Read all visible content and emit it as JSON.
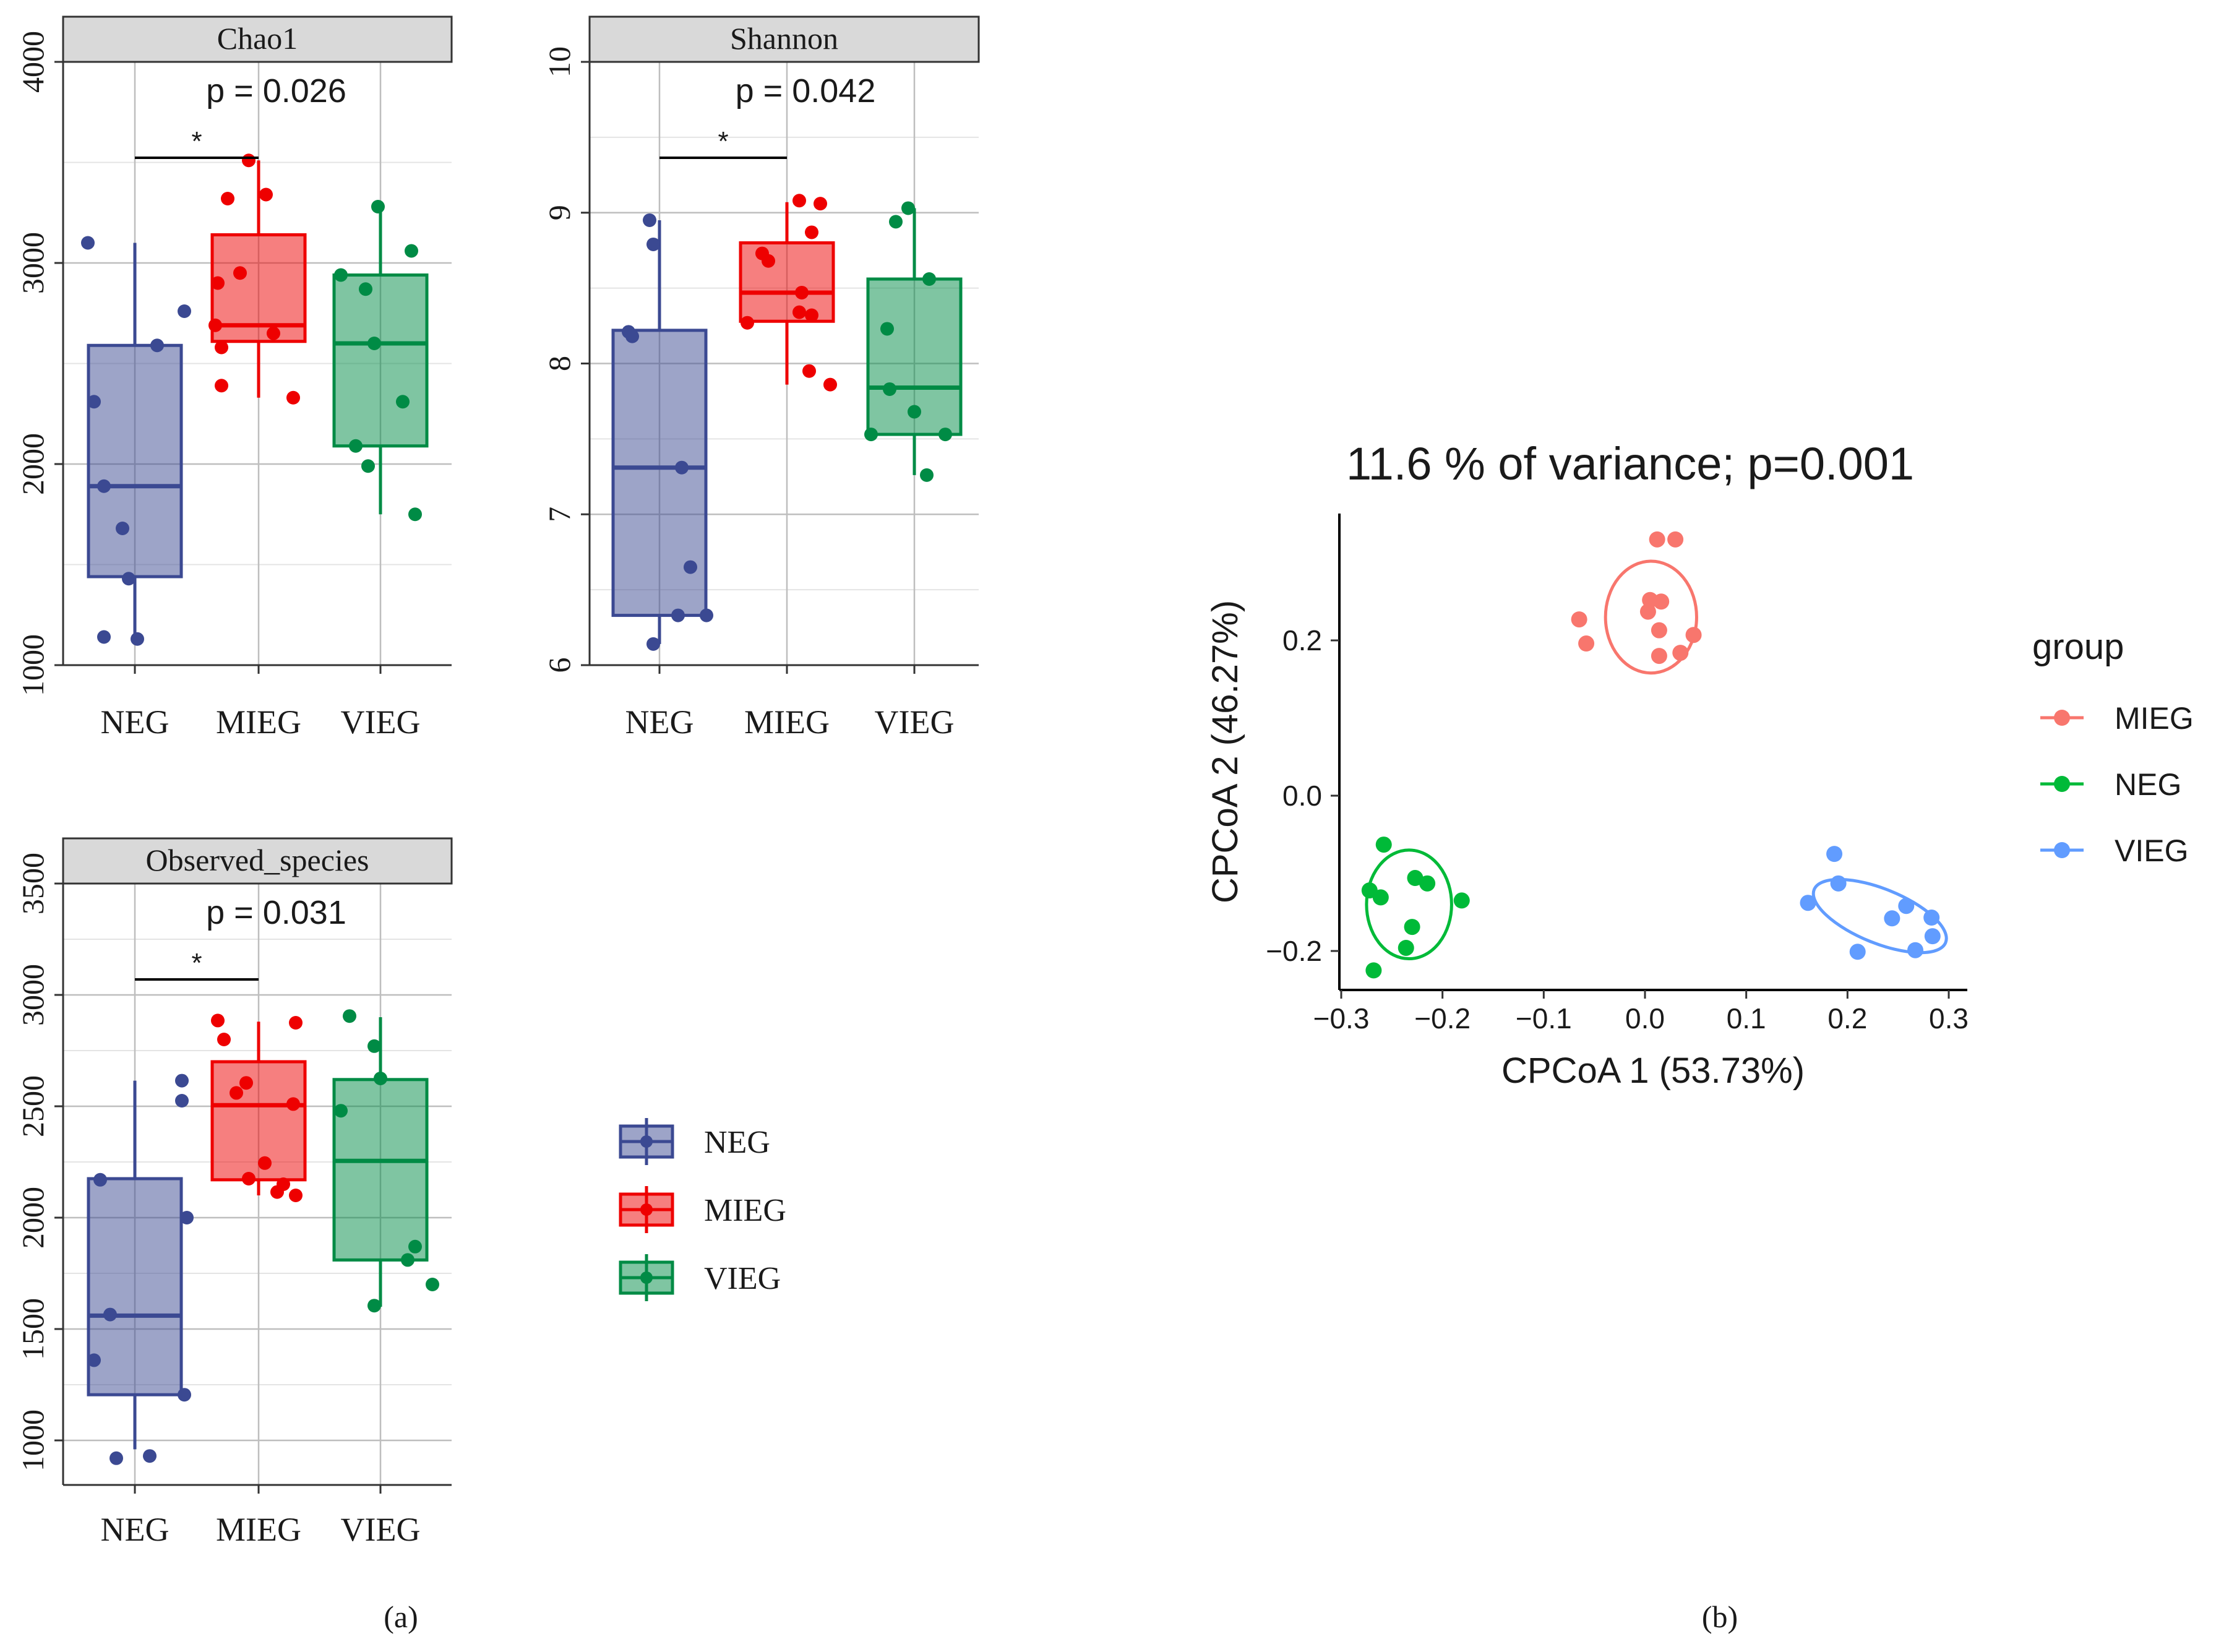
{
  "colors": {
    "NEG": "#3B4992",
    "MIEG": "#EE0000",
    "VIEG": "#008B45",
    "pcoa_MIEG": "#F8766D",
    "pcoa_NEG": "#00BA38",
    "pcoa_VIEG": "#619CFF",
    "strip": "#D9D9D9",
    "grid": "#BEBEBE"
  },
  "panel_labels": {
    "a": "(a)",
    "b": "(b)"
  },
  "chart_data": [
    {
      "type": "box",
      "title": "Chao1",
      "categories": [
        "NEG",
        "MIEG",
        "VIEG"
      ],
      "yticks": [
        "1000",
        "2000",
        "3000",
        "4000"
      ],
      "ylim": [
        1000,
        4000
      ],
      "annotation": "p = 0.026",
      "significance": "*",
      "series": [
        {
          "name": "NEG",
          "q1": 1440,
          "median": 1890,
          "q3": 2590,
          "whisker_low": 1130,
          "whisker_high": 3100,
          "points": [
            [
              -0.38,
              3100
            ],
            [
              0.4,
              2760
            ],
            [
              0.18,
              2590
            ],
            [
              -0.33,
              2310
            ],
            [
              -0.25,
              1890
            ],
            [
              -0.1,
              1680
            ],
            [
              -0.05,
              1430
            ],
            [
              -0.25,
              1140
            ],
            [
              0.02,
              1130
            ]
          ]
        },
        {
          "name": "MIEG",
          "q1": 2610,
          "median": 2690,
          "q3": 3140,
          "whisker_low": 2330,
          "whisker_high": 3510,
          "points": [
            [
              -0.08,
              3510
            ],
            [
              0.06,
              3340
            ],
            [
              -0.25,
              3320
            ],
            [
              -0.15,
              2950
            ],
            [
              -0.33,
              2900
            ],
            [
              -0.35,
              2690
            ],
            [
              0.12,
              2650
            ],
            [
              -0.3,
              2580
            ],
            [
              -0.3,
              2390
            ],
            [
              0.28,
              2330
            ]
          ]
        },
        {
          "name": "VIEG",
          "q1": 2090,
          "median": 2600,
          "q3": 2940,
          "whisker_low": 1750,
          "whisker_high": 3280,
          "points": [
            [
              -0.02,
              3280
            ],
            [
              0.25,
              3060
            ],
            [
              -0.32,
              2940
            ],
            [
              -0.12,
              2870
            ],
            [
              -0.05,
              2600
            ],
            [
              0.18,
              2310
            ],
            [
              -0.2,
              2090
            ],
            [
              -0.1,
              1990
            ],
            [
              0.28,
              1750
            ]
          ]
        }
      ]
    },
    {
      "type": "box",
      "title": "Shannon",
      "categories": [
        "NEG",
        "MIEG",
        "VIEG"
      ],
      "yticks": [
        "6",
        "7",
        "8",
        "9",
        "10"
      ],
      "ylim": [
        6,
        10
      ],
      "annotation": "p = 0.042",
      "significance": "*",
      "series": [
        {
          "name": "NEG",
          "q1": 6.33,
          "median": 7.31,
          "q3": 8.22,
          "whisker_low": 6.14,
          "whisker_high": 8.95,
          "points": [
            [
              -0.08,
              8.95
            ],
            [
              -0.05,
              8.79
            ],
            [
              -0.25,
              8.21
            ],
            [
              -0.22,
              8.18
            ],
            [
              0.18,
              7.31
            ],
            [
              0.25,
              6.65
            ],
            [
              0.15,
              6.33
            ],
            [
              0.38,
              6.33
            ],
            [
              -0.05,
              6.14
            ]
          ]
        },
        {
          "name": "MIEG",
          "q1": 8.28,
          "median": 8.47,
          "q3": 8.8,
          "whisker_low": 7.86,
          "whisker_high": 9.07,
          "points": [
            [
              0.1,
              9.08
            ],
            [
              0.27,
              9.06
            ],
            [
              0.2,
              8.87
            ],
            [
              -0.2,
              8.73
            ],
            [
              -0.15,
              8.68
            ],
            [
              0.12,
              8.47
            ],
            [
              0.1,
              8.34
            ],
            [
              0.2,
              8.32
            ],
            [
              -0.32,
              8.27
            ],
            [
              0.18,
              7.95
            ],
            [
              0.35,
              7.86
            ]
          ]
        },
        {
          "name": "VIEG",
          "q1": 7.53,
          "median": 7.84,
          "q3": 8.56,
          "whisker_low": 7.26,
          "whisker_high": 9.03,
          "points": [
            [
              -0.15,
              8.94
            ],
            [
              -0.05,
              9.03
            ],
            [
              0.12,
              8.56
            ],
            [
              -0.22,
              8.23
            ],
            [
              -0.2,
              7.83
            ],
            [
              -0.35,
              7.53
            ],
            [
              0.25,
              7.53
            ],
            [
              0.0,
              7.68
            ],
            [
              0.1,
              7.26
            ]
          ]
        }
      ]
    },
    {
      "type": "box",
      "title": "Observed_species",
      "categories": [
        "NEG",
        "MIEG",
        "VIEG"
      ],
      "yticks": [
        "1000",
        "1500",
        "2000",
        "2500",
        "3000",
        "3500"
      ],
      "ylim": [
        800,
        3500
      ],
      "annotation": "p = 0.031",
      "significance": "*",
      "series": [
        {
          "name": "NEG",
          "q1": 1205,
          "median": 1560,
          "q3": 2175,
          "whisker_low": 960,
          "whisker_high": 2615,
          "points": [
            [
              0.38,
              2615
            ],
            [
              0.38,
              2525
            ],
            [
              -0.28,
              2170
            ],
            [
              0.42,
              2000
            ],
            [
              -0.2,
              1565
            ],
            [
              -0.33,
              1360
            ],
            [
              0.4,
              1205
            ],
            [
              -0.15,
              920
            ],
            [
              0.12,
              930
            ]
          ]
        },
        {
          "name": "MIEG",
          "q1": 2170,
          "median": 2505,
          "q3": 2700,
          "whisker_low": 2100,
          "whisker_high": 2880,
          "points": [
            [
              -0.33,
              2885
            ],
            [
              0.3,
              2875
            ],
            [
              -0.28,
              2800
            ],
            [
              -0.1,
              2605
            ],
            [
              -0.18,
              2560
            ],
            [
              0.28,
              2510
            ],
            [
              0.05,
              2245
            ],
            [
              -0.08,
              2175
            ],
            [
              0.2,
              2150
            ],
            [
              0.15,
              2115
            ],
            [
              0.3,
              2100
            ]
          ]
        },
        {
          "name": "VIEG",
          "q1": 1810,
          "median": 2255,
          "q3": 2620,
          "whisker_low": 1600,
          "whisker_high": 2900,
          "points": [
            [
              -0.25,
              2905
            ],
            [
              -0.05,
              2770
            ],
            [
              0.0,
              2625
            ],
            [
              -0.32,
              2480
            ],
            [
              0.28,
              1870
            ],
            [
              0.22,
              1810
            ],
            [
              -0.05,
              1605
            ],
            [
              0.42,
              1700
            ]
          ]
        }
      ]
    },
    {
      "type": "scatter",
      "title": "11.6 % of variance; p=0.001",
      "xlabel": "CPCoA 1 (53.73%)",
      "ylabel": "CPCoA 2 (46.27%)",
      "xlim": [
        -0.33,
        0.33
      ],
      "ylim": [
        -0.245,
        0.36
      ],
      "xticks": [
        "-0.3",
        "-0.2",
        "-0.1",
        "0.0",
        "0.1",
        "0.2",
        "0.3"
      ],
      "yticks": [
        "-0.2",
        "0.0",
        "0.2"
      ],
      "legend_title": "group",
      "legend_position": "right",
      "series": [
        {
          "name": "MIEG",
          "ellipse": {
            "cx": 0.006,
            "cy": 0.23,
            "rx": 0.045,
            "ry": 0.072,
            "angle": 0
          },
          "points": [
            [
              0.012,
              0.33
            ],
            [
              0.03,
              0.33
            ],
            [
              -0.065,
              0.227
            ],
            [
              0.005,
              0.252
            ],
            [
              0.016,
              0.25
            ],
            [
              0.003,
              0.237
            ],
            [
              0.014,
              0.213
            ],
            [
              0.048,
              0.207
            ],
            [
              -0.058,
              0.196
            ],
            [
              0.014,
              0.18
            ],
            [
              0.035,
              0.184
            ]
          ]
        },
        {
          "name": "NEG",
          "ellipse": {
            "cx": -0.233,
            "cy": -0.14,
            "rx": 0.042,
            "ry": 0.07,
            "angle": 0
          },
          "points": [
            [
              -0.258,
              -0.063
            ],
            [
              -0.272,
              -0.122
            ],
            [
              -0.261,
              -0.131
            ],
            [
              -0.227,
              -0.106
            ],
            [
              -0.215,
              -0.113
            ],
            [
              -0.181,
              -0.135
            ],
            [
              -0.23,
              -0.169
            ],
            [
              -0.236,
              -0.196
            ],
            [
              -0.268,
              -0.225
            ]
          ]
        },
        {
          "name": "VIEG",
          "ellipse": {
            "cx": 0.232,
            "cy": -0.155,
            "rx": 0.07,
            "ry": 0.035,
            "angle": 22
          },
          "points": [
            [
              0.187,
              -0.075
            ],
            [
              0.191,
              -0.113
            ],
            [
              0.161,
              -0.138
            ],
            [
              0.258,
              -0.142
            ],
            [
              0.283,
              -0.157
            ],
            [
              0.244,
              -0.158
            ],
            [
              0.284,
              -0.181
            ],
            [
              0.267,
              -0.199
            ],
            [
              0.21,
              -0.201
            ]
          ]
        }
      ]
    }
  ]
}
